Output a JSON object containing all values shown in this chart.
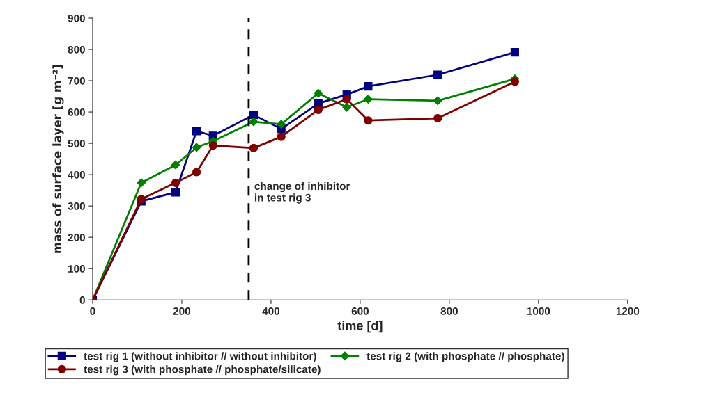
{
  "chart_data": {
    "type": "line",
    "xlabel": "time [d]",
    "ylabel": "mass of surface layer [g m⁻²]",
    "x": [
      0,
      109,
      186,
      233,
      270,
      361,
      423,
      506,
      570,
      618,
      774,
      947
    ],
    "series": [
      {
        "name": "test rig 1 (without inhibitor // without inhibitor)",
        "color": "#000080",
        "marker": "square",
        "values": [
          0,
          315,
          344,
          539,
          524,
          591,
          546,
          627,
          656,
          682,
          719,
          791
        ]
      },
      {
        "name": "test rig 2 (with phosphate // phosphate)",
        "color": "#008000",
        "marker": "diamond",
        "values": [
          0,
          374,
          431,
          487,
          507,
          569,
          561,
          660,
          615,
          641,
          636,
          706
        ]
      },
      {
        "name": "test rig 3 (with phosphate // phosphate/silicate)",
        "color": "#800000",
        "marker": "circle",
        "values": [
          0,
          322,
          374,
          408,
          493,
          485,
          521,
          607,
          641,
          573,
          580,
          697
        ]
      }
    ],
    "xlim": [
      0,
      1200
    ],
    "xticks": [
      0,
      200,
      400,
      600,
      800,
      1000,
      1200
    ],
    "ylim": [
      0,
      900
    ],
    "yticks": [
      0,
      100,
      200,
      300,
      400,
      500,
      600,
      700,
      800,
      900
    ],
    "ref_lines": [
      {
        "axis": "x",
        "value": 350,
        "label": "change of inhibitor\nin test rig 3",
        "color": "#000000",
        "line_style": "dashed"
      }
    ],
    "grid": false,
    "legend": "bottom",
    "line_style": "solid"
  }
}
